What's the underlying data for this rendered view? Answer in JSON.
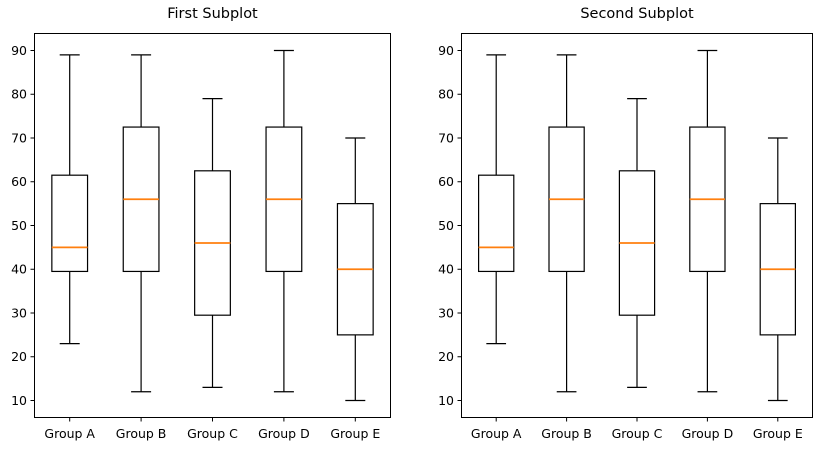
{
  "figure": {
    "background": "#ffffff",
    "line_color": "#000000",
    "median_color": "#ff7f0e"
  },
  "chart_data": [
    {
      "type": "boxplot",
      "title": "First Subplot",
      "categories": [
        "Group A",
        "Group B",
        "Group C",
        "Group D",
        "Group E"
      ],
      "yticks": [
        10,
        20,
        30,
        40,
        50,
        60,
        70,
        80,
        90
      ],
      "ylim": [
        6,
        94
      ],
      "grid": false,
      "box_color": "#000000",
      "median_color": "#ff7f0e",
      "series": [
        {
          "label": "Group A",
          "whislo": 23,
          "q1": 39.5,
          "med": 45,
          "q3": 61.5,
          "whishi": 89
        },
        {
          "label": "Group B",
          "whislo": 12,
          "q1": 39.5,
          "med": 56,
          "q3": 72.5,
          "whishi": 89
        },
        {
          "label": "Group C",
          "whislo": 13,
          "q1": 29.5,
          "med": 46,
          "q3": 62.5,
          "whishi": 79
        },
        {
          "label": "Group D",
          "whislo": 12,
          "q1": 39.5,
          "med": 56,
          "q3": 72.5,
          "whishi": 90
        },
        {
          "label": "Group E",
          "whislo": 10,
          "q1": 25,
          "med": 40,
          "q3": 55,
          "whishi": 70
        }
      ]
    },
    {
      "type": "boxplot",
      "title": "Second Subplot",
      "categories": [
        "Group A",
        "Group B",
        "Group C",
        "Group D",
        "Group E"
      ],
      "yticks": [
        10,
        20,
        30,
        40,
        50,
        60,
        70,
        80,
        90
      ],
      "ylim": [
        6,
        94
      ],
      "grid": false,
      "box_color": "#000000",
      "median_color": "#ff7f0e",
      "series": [
        {
          "label": "Group A",
          "whislo": 23,
          "q1": 39.5,
          "med": 45,
          "q3": 61.5,
          "whishi": 89
        },
        {
          "label": "Group B",
          "whislo": 12,
          "q1": 39.5,
          "med": 56,
          "q3": 72.5,
          "whishi": 89
        },
        {
          "label": "Group C",
          "whislo": 13,
          "q1": 29.5,
          "med": 46,
          "q3": 62.5,
          "whishi": 79
        },
        {
          "label": "Group D",
          "whislo": 12,
          "q1": 39.5,
          "med": 56,
          "q3": 72.5,
          "whishi": 90
        },
        {
          "label": "Group E",
          "whislo": 10,
          "q1": 25,
          "med": 40,
          "q3": 55,
          "whishi": 70
        }
      ]
    }
  ]
}
